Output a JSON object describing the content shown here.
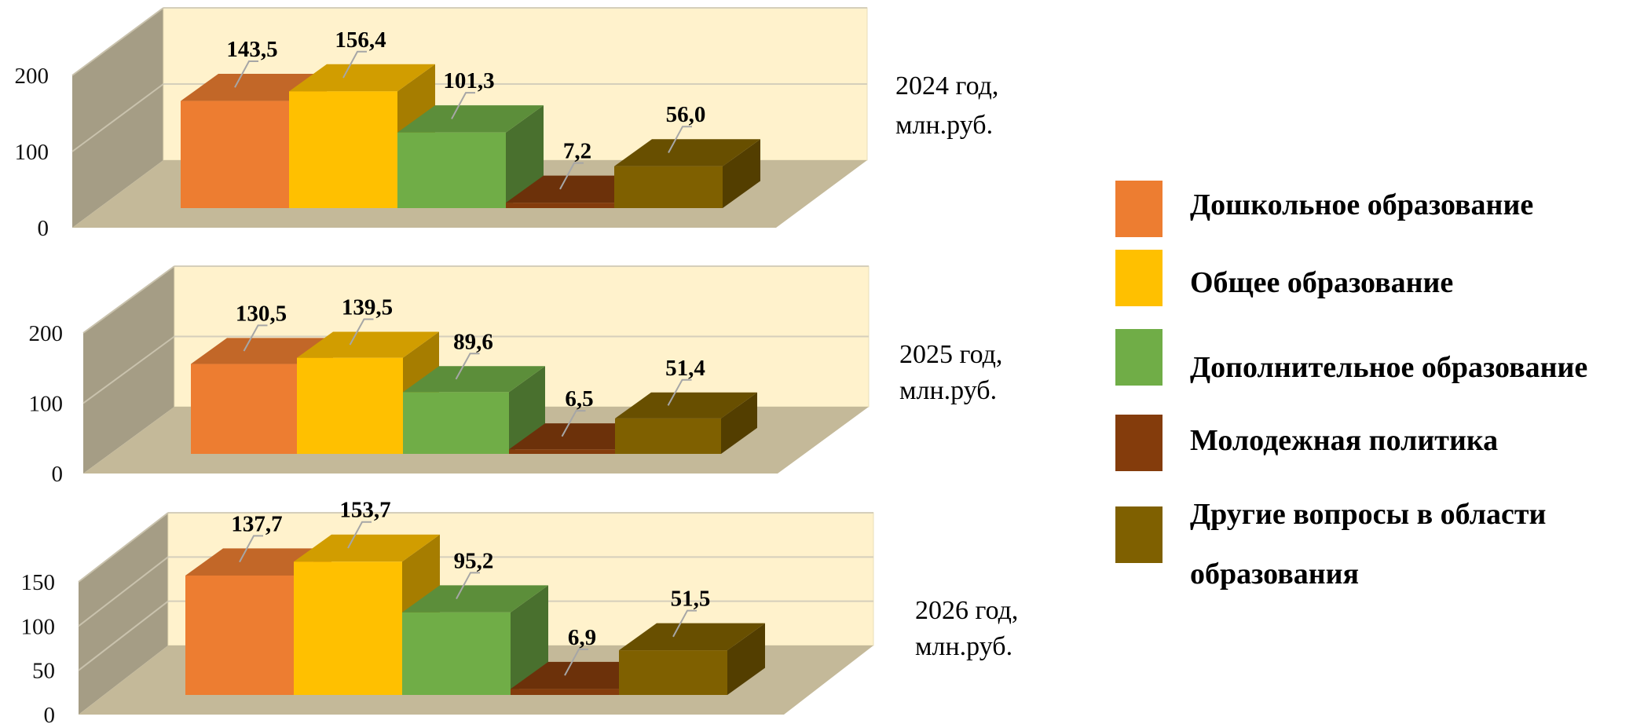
{
  "colors": {
    "wall": "#fff2cc",
    "side_wall": "#a59d85",
    "floor": "#c4b999",
    "gridline": "#d5cfbb",
    "leader": "#a6a6a6"
  },
  "legend": {
    "items": [
      {
        "lines": [
          "Дошкольное образование"
        ],
        "color": "#ed7d31"
      },
      {
        "lines": [
          "Общее образование"
        ],
        "color": "#ffc000"
      },
      {
        "lines": [
          "Дополнительное образование"
        ],
        "color": "#70ad47"
      },
      {
        "lines": [
          "Молодежная политика"
        ],
        "color": "#843c0c"
      },
      {
        "lines": [
          "Другие вопросы в области",
          "образования"
        ],
        "color": "#7f6000"
      }
    ]
  },
  "chart_data": [
    {
      "type": "bar",
      "series": [
        {
          "name": "Дошкольное образование",
          "values": [
            143.5
          ],
          "labels": [
            "143,5"
          ]
        },
        {
          "name": "Общее образование",
          "values": [
            156.4
          ],
          "labels": [
            "156,4"
          ]
        },
        {
          "name": "Дополнительное образование",
          "values": [
            101.3
          ],
          "labels": [
            "101,3"
          ]
        },
        {
          "name": "Молодежная политика",
          "values": [
            7.2
          ],
          "labels": [
            "7,2"
          ]
        },
        {
          "name": "Другие вопросы в области образования",
          "values": [
            56.0
          ],
          "labels": [
            "56,0"
          ]
        }
      ],
      "yticks": [
        "0",
        "100",
        "200"
      ],
      "ylim": [
        0,
        200
      ],
      "caption": [
        "2024 год,",
        "млн.руб."
      ]
    },
    {
      "type": "bar",
      "series": [
        {
          "name": "Дошкольное образование",
          "values": [
            130.5
          ],
          "labels": [
            "130,5"
          ]
        },
        {
          "name": "Общее образование",
          "values": [
            139.5
          ],
          "labels": [
            "139,5"
          ]
        },
        {
          "name": "Дополнительное образование",
          "values": [
            89.6
          ],
          "labels": [
            "89,6"
          ]
        },
        {
          "name": "Молодежная политика",
          "values": [
            6.5
          ],
          "labels": [
            "6,5"
          ]
        },
        {
          "name": "Другие вопросы в области образования",
          "values": [
            51.4
          ],
          "labels": [
            "51,4"
          ]
        }
      ],
      "yticks": [
        "0",
        "100",
        "200"
      ],
      "ylim": [
        0,
        200
      ],
      "caption": [
        "2025 год,",
        "млн.руб."
      ]
    },
    {
      "type": "bar",
      "series": [
        {
          "name": "Дошкольное образование",
          "values": [
            137.7
          ],
          "labels": [
            "137,7"
          ]
        },
        {
          "name": "Общее образование",
          "values": [
            153.7
          ],
          "labels": [
            "153,7"
          ]
        },
        {
          "name": "Дополнительное образование",
          "values": [
            95.2
          ],
          "labels": [
            "95,2"
          ]
        },
        {
          "name": "Молодежная политика",
          "values": [
            6.9
          ],
          "labels": [
            "6,9"
          ]
        },
        {
          "name": "Другие вопросы в области образования",
          "values": [
            51.5
          ],
          "labels": [
            "51,5"
          ]
        }
      ],
      "yticks": [
        "0",
        "50",
        "100",
        "150"
      ],
      "ylim": [
        0,
        150
      ],
      "caption": [
        "2026 год,",
        "млн.руб."
      ]
    }
  ]
}
